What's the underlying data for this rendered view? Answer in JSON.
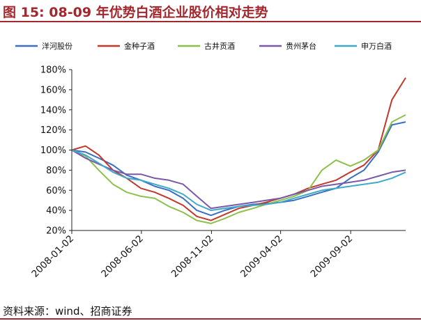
{
  "figure": {
    "title": "图 15:  08-09 年优势白酒企业股价相对走势",
    "source": "资料来源：wind、招商证券"
  },
  "chart_data": {
    "type": "line",
    "title": "",
    "xlabel": "",
    "ylabel": "",
    "y_unit": "%",
    "ylim": [
      20,
      180
    ],
    "yticks": [
      "20%",
      "40%",
      "60%",
      "80%",
      "100%",
      "120%",
      "140%",
      "160%",
      "180%"
    ],
    "xlim": [
      "2008-01-02",
      "2009-12-31"
    ],
    "x_tick_labels": [
      "2008-01-02",
      "2008-06-02",
      "2008-11-02",
      "2009-04-02",
      "2009-09-02"
    ],
    "grid": false,
    "legend_position": "top",
    "x": [
      "2008-01-02",
      "2008-02-01",
      "2008-03-01",
      "2008-04-01",
      "2008-05-01",
      "2008-06-01",
      "2008-07-01",
      "2008-08-01",
      "2008-09-01",
      "2008-10-01",
      "2008-11-01",
      "2008-12-01",
      "2009-01-01",
      "2009-02-01",
      "2009-03-01",
      "2009-04-01",
      "2009-05-01",
      "2009-06-01",
      "2009-07-01",
      "2009-08-01",
      "2009-09-01",
      "2009-10-01",
      "2009-11-01",
      "2009-12-01",
      "2009-12-31"
    ],
    "series": [
      {
        "name": "洋河股份",
        "color": "#3a6fc4",
        "values": [
          100,
          98,
          92,
          85,
          75,
          70,
          64,
          60,
          52,
          40,
          35,
          40,
          44,
          46,
          47,
          48,
          50,
          54,
          58,
          62,
          72,
          80,
          98,
          125,
          128
        ]
      },
      {
        "name": "金种子酒",
        "color": "#c0392b",
        "values": [
          100,
          104,
          95,
          80,
          72,
          62,
          58,
          52,
          45,
          34,
          30,
          36,
          42,
          45,
          48,
          52,
          56,
          62,
          66,
          70,
          78,
          85,
          100,
          150,
          172
        ]
      },
      {
        "name": "古井贡酒",
        "color": "#8dc04a",
        "values": [
          100,
          94,
          80,
          66,
          58,
          54,
          52,
          44,
          38,
          30,
          27,
          32,
          38,
          42,
          46,
          50,
          54,
          60,
          80,
          90,
          84,
          90,
          100,
          128,
          135
        ]
      },
      {
        "name": "贵州茅台",
        "color": "#7a58a8",
        "values": [
          100,
          92,
          86,
          80,
          76,
          76,
          72,
          70,
          66,
          54,
          42,
          44,
          46,
          48,
          50,
          52,
          56,
          60,
          64,
          66,
          68,
          70,
          74,
          78,
          80
        ]
      },
      {
        "name": "申万白酒",
        "color": "#3ea9c8",
        "values": [
          100,
          95,
          87,
          78,
          72,
          70,
          66,
          62,
          56,
          46,
          40,
          42,
          44,
          45,
          46,
          48,
          52,
          56,
          60,
          62,
          64,
          66,
          68,
          72,
          78
        ]
      }
    ]
  }
}
